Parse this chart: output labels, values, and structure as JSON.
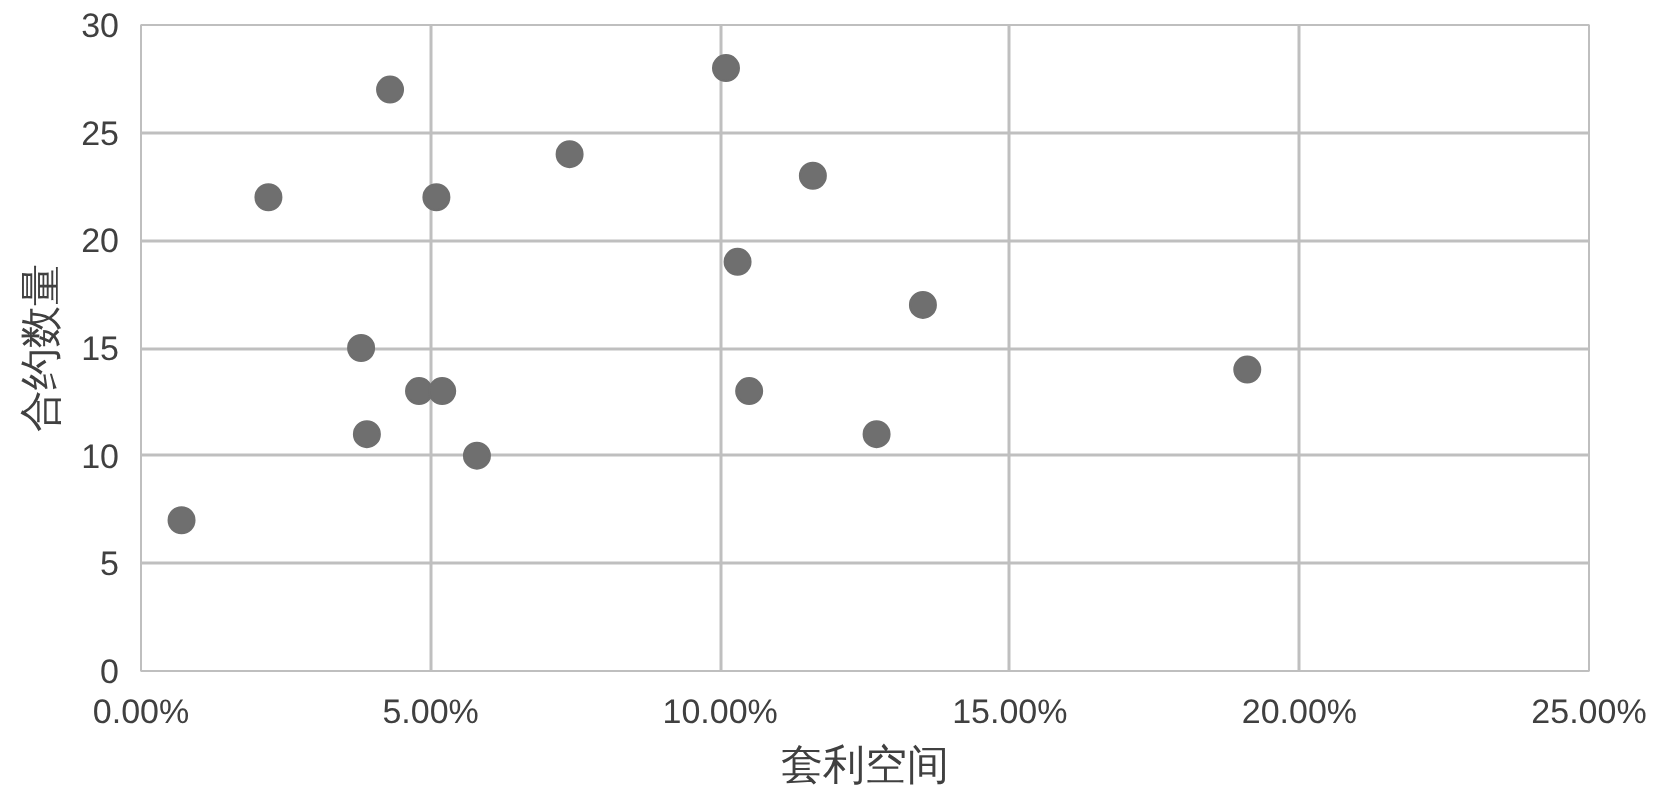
{
  "chart_data": {
    "type": "scatter",
    "xlabel": "套利空间",
    "ylabel": "合约数量",
    "x": [
      0.007,
      0.022,
      0.043,
      0.038,
      0.039,
      0.048,
      0.052,
      0.051,
      0.058,
      0.074,
      0.101,
      0.103,
      0.105,
      0.116,
      0.127,
      0.135,
      0.191
    ],
    "series": [
      {
        "color": "#6f6f6f",
        "values": [
          7,
          22,
          27,
          15,
          11,
          13,
          13,
          22,
          10,
          24,
          28,
          19,
          13,
          23,
          11,
          17,
          14
        ]
      }
    ],
    "xlim": [
      0,
      0.25
    ],
    "ylim": [
      0,
      30
    ],
    "xticks": [
      {
        "value": 0,
        "label": "0.00%"
      },
      {
        "value": 0.05,
        "label": "5.00%"
      },
      {
        "value": 0.1,
        "label": "10.00%"
      },
      {
        "value": 0.15,
        "label": "15.00%"
      },
      {
        "value": 0.2,
        "label": "20.00%"
      },
      {
        "value": 0.25,
        "label": "25.00%"
      }
    ],
    "yticks": [
      0,
      5,
      10,
      15,
      20,
      25,
      30
    ],
    "grid": true,
    "marker": "circle"
  }
}
